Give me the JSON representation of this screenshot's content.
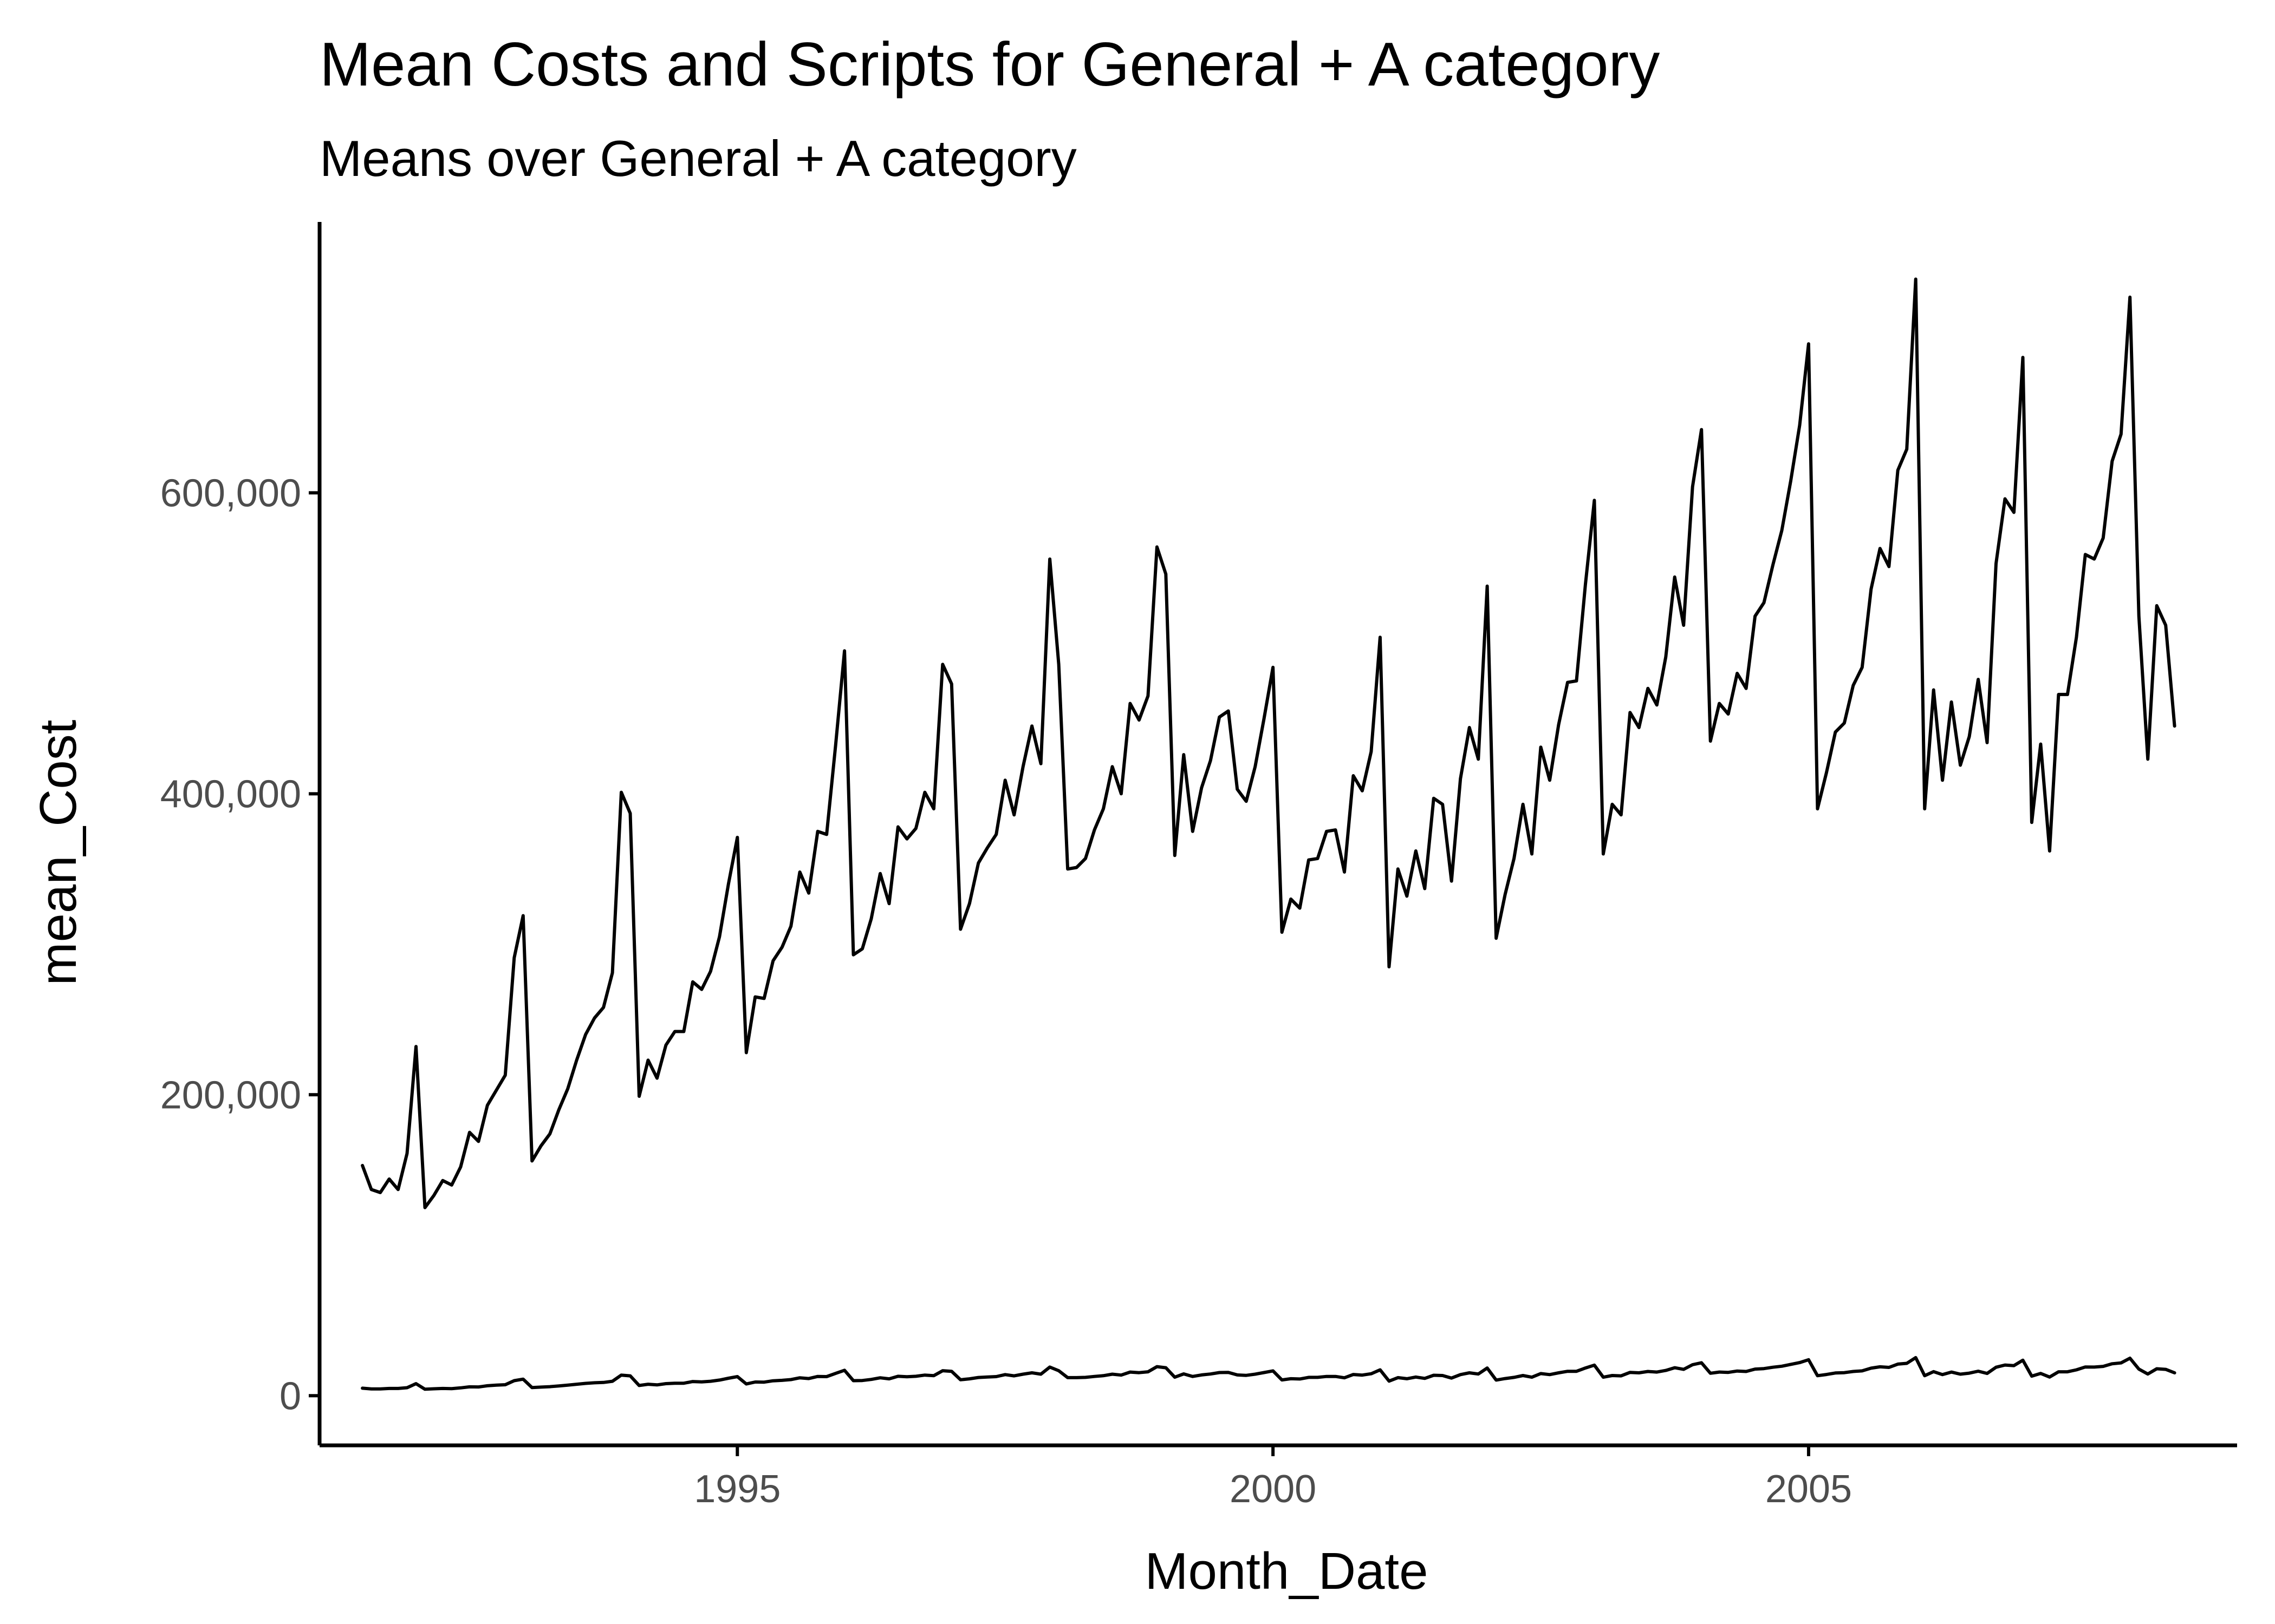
{
  "chart_data": {
    "type": "line",
    "title": "Mean Costs and Scripts for General + A category",
    "subtitle": "Means over General + A category",
    "xlabel": "Month_Date",
    "ylabel": "mean_Cost",
    "x_ticks": [
      {
        "value": 1995,
        "label": "1995"
      },
      {
        "value": 2000,
        "label": "2000"
      },
      {
        "value": 2005,
        "label": "2005"
      }
    ],
    "y_ticks": [
      {
        "value": 0,
        "label": "0"
      },
      {
        "value": 200000,
        "label": "200,000"
      },
      {
        "value": 400000,
        "label": "400,000"
      },
      {
        "value": 600000,
        "label": "600,000"
      }
    ],
    "xlim": [
      1991.1,
      2009.0
    ],
    "ylim": [
      -33000,
      780000
    ],
    "grid": false,
    "legend": "none",
    "x_start": "1991-07",
    "x_step": "month",
    "series": [
      {
        "values": [
          153000,
          137000,
          135000,
          144000,
          137000,
          161000,
          232000,
          125000,
          133000,
          143000,
          140000,
          152000,
          175000,
          169000,
          193000,
          203000,
          213000,
          291000,
          319000,
          156000,
          166000,
          174000,
          190000,
          204000,
          223000,
          240000,
          251000,
          258000,
          281000,
          401000,
          387000,
          199000,
          223000,
          211000,
          233000,
          242000,
          242000,
          275000,
          270000,
          282000,
          305000,
          340000,
          371000,
          228000,
          265000,
          264000,
          289000,
          298000,
          312000,
          348000,
          334000,
          375000,
          373000,
          432000,
          495000,
          293000,
          297000,
          317000,
          347000,
          327000,
          378000,
          370000,
          377000,
          401000,
          390000,
          486000,
          473000,
          310000,
          327000,
          354000,
          364000,
          373000,
          409000,
          386000,
          418000,
          445000,
          420000,
          556000,
          486000,
          350000,
          351000,
          357000,
          376000,
          390000,
          418000,
          400000,
          460000,
          449000,
          465000,
          564000,
          546000,
          359000,
          426000,
          375000,
          404000,
          422000,
          451000,
          455000,
          403000,
          395000,
          418000,
          450000,
          484000,
          308000,
          330000,
          324000,
          356000,
          357000,
          375000,
          376000,
          348000,
          412000,
          402000,
          428000,
          504000,
          285000,
          350000,
          332000,
          362000,
          337000,
          397000,
          393000,
          342000,
          410000,
          444000,
          423000,
          538000,
          304000,
          333000,
          357000,
          393000,
          360000,
          431000,
          409000,
          446000,
          474000,
          475000,
          539000,
          595000,
          360000,
          393000,
          386000,
          454000,
          444000,
          470000,
          459000,
          491000,
          544000,
          512000,
          604000,
          642000,
          435000,
          460000,
          453000,
          480000,
          470000,
          518000,
          527000,
          552000,
          575000,
          608000,
          645000,
          699000,
          390000,
          414000,
          441000,
          447000,
          472000,
          484000,
          536000,
          563000,
          551000,
          615000,
          629000,
          742000,
          390000,
          469000,
          409000,
          461000,
          419000,
          438000,
          476000,
          434000,
          553000,
          596000,
          587000,
          690000,
          381000,
          433000,
          362000,
          466000,
          466000,
          504000,
          559000,
          556000,
          570000,
          621000,
          639000,
          730000,
          518000,
          423000,
          525000,
          512000,
          445000
        ]
      },
      {
        "values": [
          5000,
          4500,
          4500,
          4800,
          4800,
          5300,
          8000,
          4300,
          4600,
          4800,
          4700,
          5200,
          5900,
          5800,
          6600,
          7000,
          7300,
          10000,
          11000,
          5400,
          5700,
          6000,
          6500,
          7000,
          7600,
          8200,
          8600,
          8800,
          9600,
          13700,
          13200,
          6800,
          7600,
          7200,
          8000,
          8300,
          8300,
          9400,
          9200,
          9600,
          10400,
          11600,
          12700,
          7800,
          9100,
          9000,
          9900,
          10200,
          10700,
          11900,
          11400,
          12800,
          12700,
          14800,
          16900,
          10000,
          10100,
          10800,
          11900,
          11200,
          12900,
          12600,
          12900,
          13700,
          13300,
          16600,
          16200,
          10600,
          11200,
          12100,
          12400,
          12700,
          14000,
          13200,
          14300,
          15200,
          14300,
          19000,
          16600,
          12000,
          12000,
          12200,
          12800,
          13300,
          14300,
          13700,
          15700,
          15300,
          15900,
          19300,
          18600,
          12300,
          14500,
          12800,
          13800,
          14400,
          15400,
          15500,
          13800,
          13500,
          14300,
          15400,
          16500,
          10500,
          11300,
          11100,
          12200,
          12200,
          12800,
          12800,
          11900,
          14100,
          13700,
          14600,
          17200,
          9700,
          12000,
          11300,
          12400,
          11500,
          13600,
          13400,
          11700,
          14000,
          15200,
          14400,
          18400,
          10400,
          11400,
          12200,
          13400,
          12300,
          14700,
          14000,
          15200,
          16200,
          16200,
          18400,
          20300,
          12300,
          13400,
          13200,
          15500,
          15200,
          16100,
          15700,
          16800,
          18600,
          17500,
          20600,
          21900,
          14900,
          15700,
          15500,
          16400,
          16100,
          17700,
          18000,
          18900,
          19600,
          20800,
          22000,
          23900,
          13300,
          14100,
          15100,
          15300,
          16100,
          16500,
          18300,
          19200,
          18800,
          21000,
          21500,
          25300,
          13300,
          16000,
          14000,
          15700,
          14300,
          15000,
          16300,
          14800,
          18900,
          20400,
          20000,
          23600,
          13000,
          14800,
          12400,
          15900,
          15900,
          17200,
          19100,
          19000,
          19500,
          21200,
          21800,
          24900,
          17700,
          14400,
          17900,
          17500,
          15200
        ]
      }
    ]
  }
}
